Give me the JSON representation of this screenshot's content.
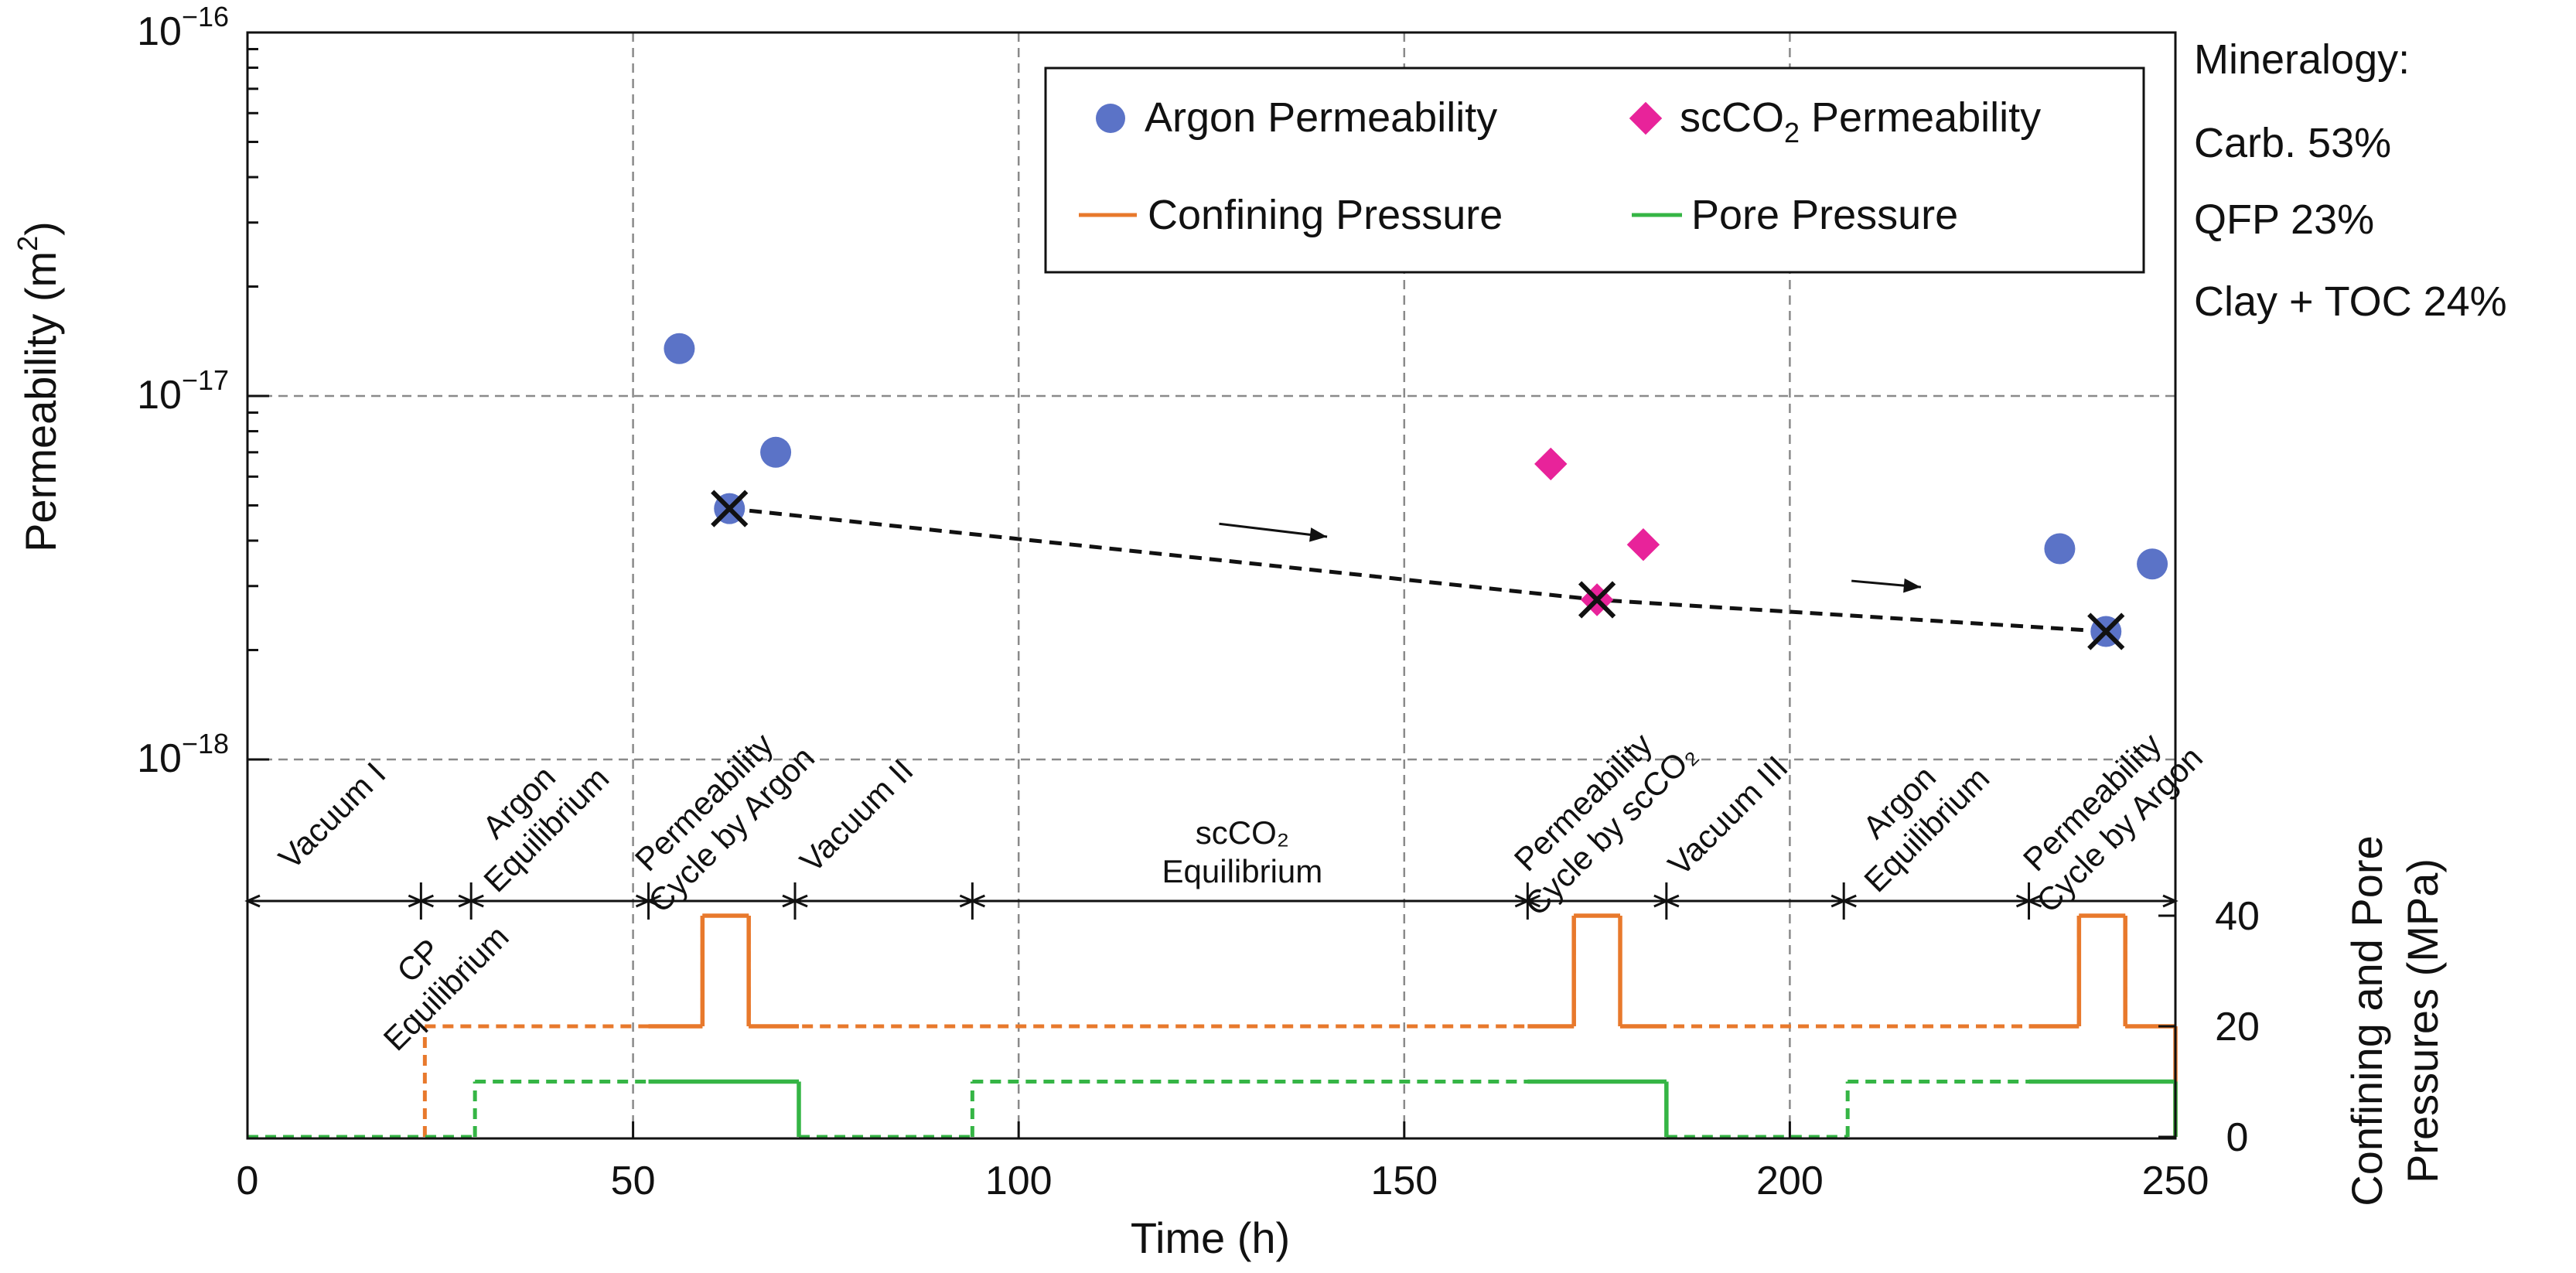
{
  "chart_data": {
    "type": "scatter",
    "xlabel": "Time (h)",
    "xlim": [
      0,
      250
    ],
    "x_ticks": [
      0,
      50,
      100,
      150,
      200,
      250
    ],
    "ylabel": "Permeability (m²)",
    "ylabel_parts": {
      "base": "Permeability (m",
      "sup": "2",
      "end": ")"
    },
    "ylim": [
      "1e-18",
      "1e-16"
    ],
    "y_scale": "log",
    "y_ticks": [
      {
        "value": -16,
        "base": "10",
        "exp": "−16"
      },
      {
        "value": -17,
        "base": "10",
        "exp": "−17"
      },
      {
        "value": -18,
        "base": "10",
        "exp": "−18"
      }
    ],
    "y2label_line1": "Confining and Pore",
    "y2label_line2": "Pressures (MPa)",
    "y2lim": [
      0,
      40
    ],
    "y2_ticks": [
      0,
      20,
      40
    ],
    "grid": true,
    "legend_position": "top-right",
    "legend": {
      "argon": "Argon Permeability",
      "sc_base": "scCO",
      "sc_sub": "2",
      "sc_end": " Permeability",
      "confining": "Confining Pressure",
      "pore": "Pore Pressure"
    },
    "mineralogy": [
      "Mineralogy:",
      "Carb. 53%",
      "QFP 23%",
      "Clay + TOC 24%"
    ],
    "series": [
      {
        "name": "Argon Permeability",
        "color": "#5b73c7",
        "marker": "circle",
        "points": [
          {
            "t": 56,
            "k": 1.35e-17
          },
          {
            "t": 68.5,
            "k": 7e-18
          },
          {
            "t": 62.5,
            "k": 4.9e-18
          },
          {
            "t": 235,
            "k": 3.8e-18
          },
          {
            "t": 247,
            "k": 3.45e-18
          },
          {
            "t": 241,
            "k": 2.25e-18
          }
        ]
      },
      {
        "name": "scCO2 Permeability",
        "color": "#e8239a",
        "marker": "diamond",
        "points": [
          {
            "t": 169,
            "k": 6.5e-18
          },
          {
            "t": 181,
            "k": 3.9e-18
          },
          {
            "t": 175,
            "k": 2.75e-18
          }
        ]
      },
      {
        "name": "Confining Pressure",
        "color": "#e8792c",
        "unit": "MPa",
        "steps": [
          [
            0,
            0
          ],
          [
            23,
            0
          ],
          [
            23,
            20
          ],
          [
            59,
            20
          ],
          [
            59,
            40
          ],
          [
            65,
            40
          ],
          [
            65,
            20
          ],
          [
            172,
            20
          ],
          [
            172,
            40
          ],
          [
            178,
            40
          ],
          [
            178,
            20
          ],
          [
            237.5,
            20
          ],
          [
            237.5,
            40
          ],
          [
            243.5,
            40
          ],
          [
            243.5,
            20
          ],
          [
            250,
            20
          ],
          [
            250,
            0
          ]
        ],
        "solid_ranges": [
          [
            52,
            71.5
          ],
          [
            166,
            184
          ],
          [
            231,
            250
          ]
        ]
      },
      {
        "name": "Pore Pressure",
        "color": "#35b545",
        "unit": "MPa",
        "steps": [
          [
            0,
            0
          ],
          [
            29.5,
            0
          ],
          [
            29.5,
            10
          ],
          [
            71.5,
            10
          ],
          [
            71.5,
            0
          ],
          [
            94,
            0
          ],
          [
            94,
            10
          ],
          [
            184,
            10
          ],
          [
            184,
            0
          ],
          [
            207.5,
            0
          ],
          [
            207.5,
            10
          ],
          [
            250,
            10
          ],
          [
            250,
            0
          ]
        ],
        "solid_ranges": [
          [
            52,
            71.5
          ],
          [
            166,
            184
          ],
          [
            231,
            250
          ]
        ]
      }
    ],
    "trend_line": {
      "color": "#111111",
      "points": [
        {
          "t": 62.5,
          "k": 4.9e-18
        },
        {
          "t": 175,
          "k": 2.75e-18
        },
        {
          "t": 241,
          "k": 2.25e-18
        }
      ]
    },
    "x_markers": [
      {
        "t": 62.5,
        "k": 4.9e-18
      },
      {
        "t": 175,
        "k": 2.75e-18
      },
      {
        "t": 241,
        "k": 2.25e-18
      }
    ],
    "arrows": [
      {
        "t1": 126,
        "k1": 4.45e-18,
        "t2": 140,
        "k2": 4.1e-18
      },
      {
        "t1": 208,
        "k1": 3.1e-18,
        "t2": 217,
        "k2": 2.98e-18
      }
    ],
    "phase_boundaries": [
      0,
      22.5,
      29,
      52,
      71,
      94,
      166,
      184,
      207,
      231,
      250
    ],
    "phase_labels": [
      {
        "lines": [
          "Vacuum I"
        ],
        "t": 11,
        "pos": "above"
      },
      {
        "lines": [
          "CP",
          "Equilibrium"
        ],
        "t": 24,
        "pos": "below"
      },
      {
        "lines": [
          "Argon",
          "Equilibrium"
        ],
        "t": 37,
        "pos": "above"
      },
      {
        "lines": [
          "Permeability",
          "Cycle by Argon"
        ],
        "t": 61,
        "pos": "above"
      },
      {
        "lines": [
          "Vacuum II"
        ],
        "t": 79,
        "pos": "above"
      },
      {
        "lines": [
          "scCO₂",
          "Equilibrium"
        ],
        "t": 129,
        "pos": "flat"
      },
      {
        "lines": [
          "Permeability",
          "Cycle by scCO₂"
        ],
        "t": 175,
        "pos": "above"
      },
      {
        "lines": [
          "Vacuum III"
        ],
        "t": 192,
        "pos": "above"
      },
      {
        "lines": [
          "Argon",
          "Equilibrium"
        ],
        "t": 216,
        "pos": "above"
      },
      {
        "lines": [
          "Permeability",
          "Cycle by Argon"
        ],
        "t": 241,
        "pos": "above"
      }
    ]
  }
}
